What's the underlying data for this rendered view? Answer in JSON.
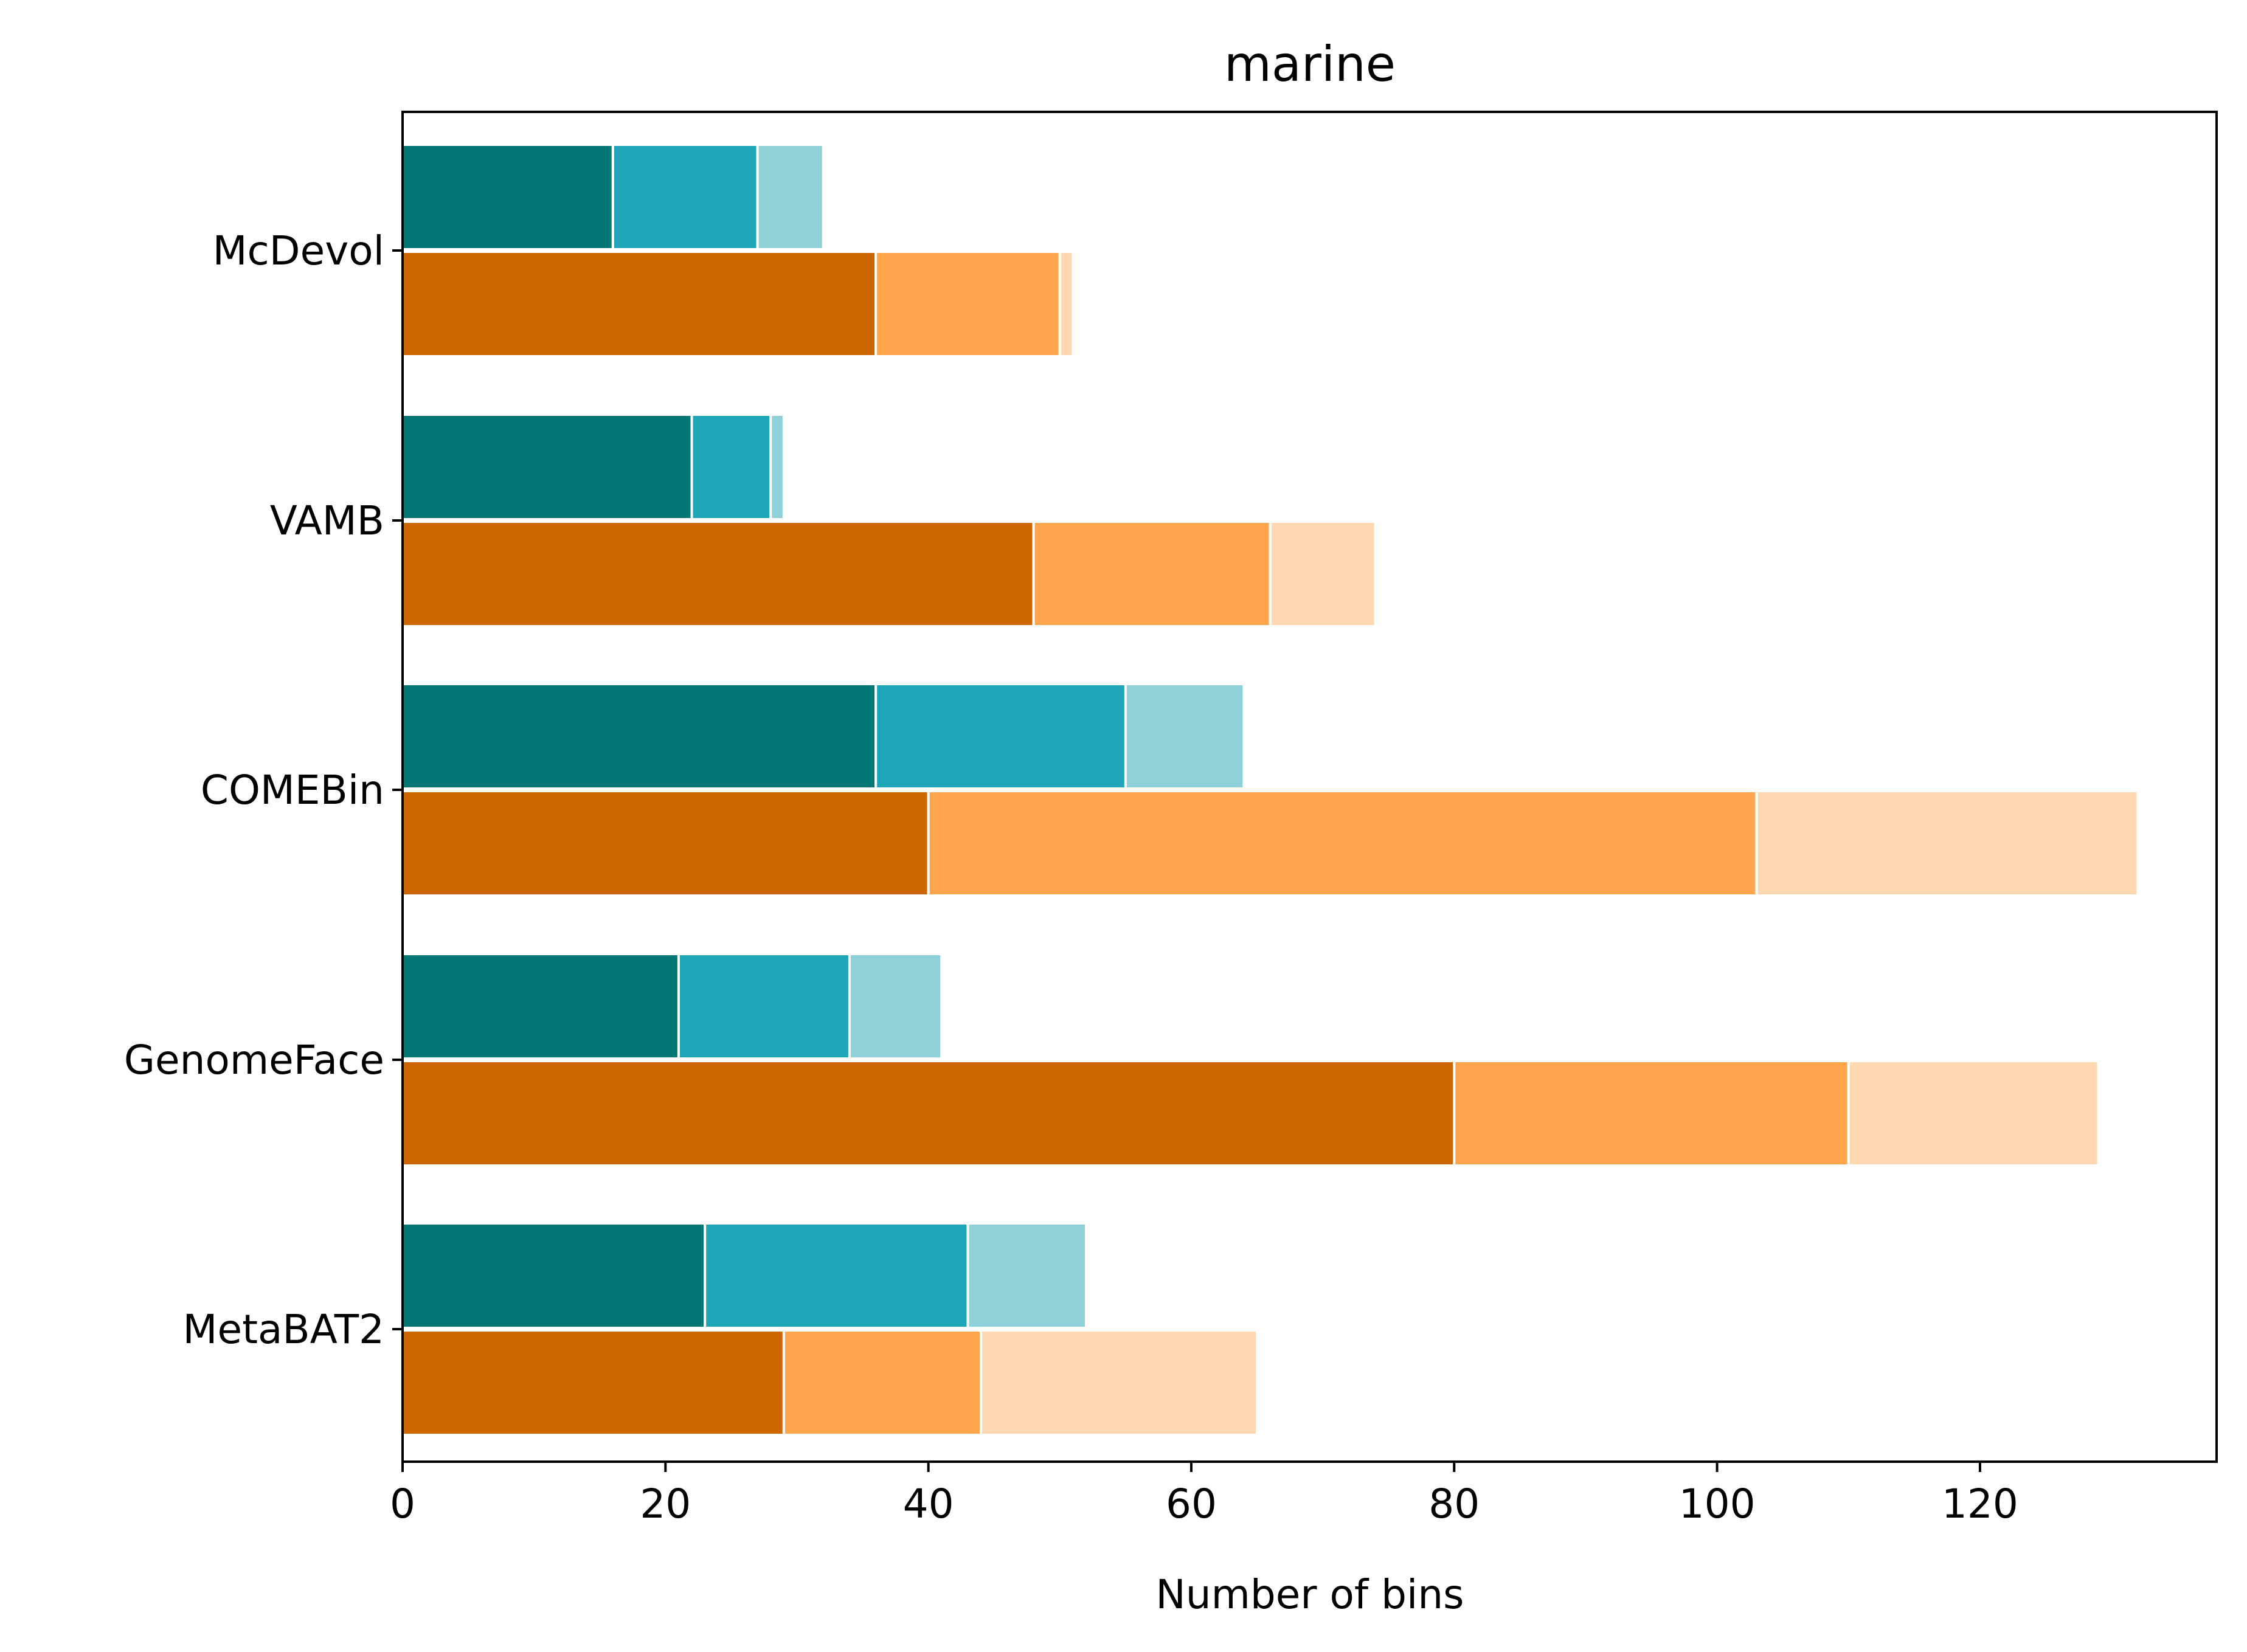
{
  "chart_data": {
    "type": "bar",
    "orientation": "horizontal",
    "stacked": true,
    "title": "marine",
    "xlabel": "Number of bins",
    "ylabel": "",
    "xlim": [
      0,
      138
    ],
    "xticks": [
      "0",
      "20",
      "40",
      "60",
      "80",
      "100",
      "120"
    ],
    "categories": [
      "McDevol",
      "VAMB",
      "COMEBin",
      "GenomeFace",
      "MetaBAT2"
    ],
    "groups": [
      {
        "position": "upper",
        "colors": [
          "#037773",
          "#1ea5b8",
          "#8fd1d9"
        ],
        "segments": [
          {
            "values": [
              16,
              22,
              36,
              21,
              23
            ]
          },
          {
            "values": [
              11,
              6,
              19,
              13,
              20
            ]
          },
          {
            "values": [
              5,
              1,
              9,
              7,
              9
            ]
          }
        ]
      },
      {
        "position": "lower",
        "colors": [
          "#cd6600",
          "#ffa64d",
          "#ffd8b1"
        ],
        "segments": [
          {
            "values": [
              36,
              48,
              40,
              80,
              29
            ]
          },
          {
            "values": [
              14,
              18,
              63,
              30,
              15
            ]
          },
          {
            "values": [
              1,
              8,
              29,
              19,
              21
            ]
          }
        ]
      }
    ],
    "grid": false,
    "legend": "none"
  }
}
